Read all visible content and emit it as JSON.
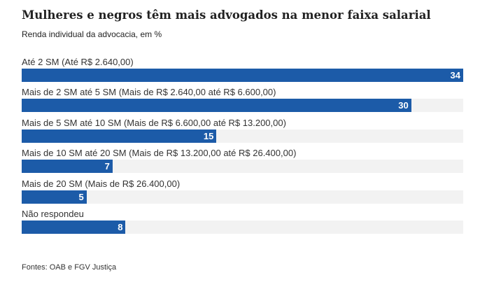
{
  "chart_data": {
    "type": "bar",
    "orientation": "horizontal",
    "title": "Mulheres e negros têm mais advogados na menor faixa salarial",
    "subtitle": "Renda individual da advocacia, em %",
    "categories": [
      "Até 2 SM (Até R$ 2.640,00)",
      "Mais de 2 SM até 5 SM (Mais de R$ 2.640,00 até R$ 6.600,00)",
      "Mais de 5 SM até 10 SM (Mais de R$ 6.600,00 até R$ 13.200,00)",
      "Mais de 10 SM até 20 SM (Mais de R$ 13.200,00 até R$ 26.400,00)",
      "Mais de 20 SM (Mais de R$ 26.400,00)",
      "Não respondeu"
    ],
    "values": [
      34,
      30,
      15,
      7,
      5,
      8
    ],
    "xlim": [
      0,
      34
    ],
    "data_labels": true,
    "grid": false,
    "source": "Fontes: OAB e FGV Justiça",
    "colors": {
      "bar": "#1c5ba8",
      "track": "#f2f2f2",
      "label_text": "#ffffff"
    }
  }
}
